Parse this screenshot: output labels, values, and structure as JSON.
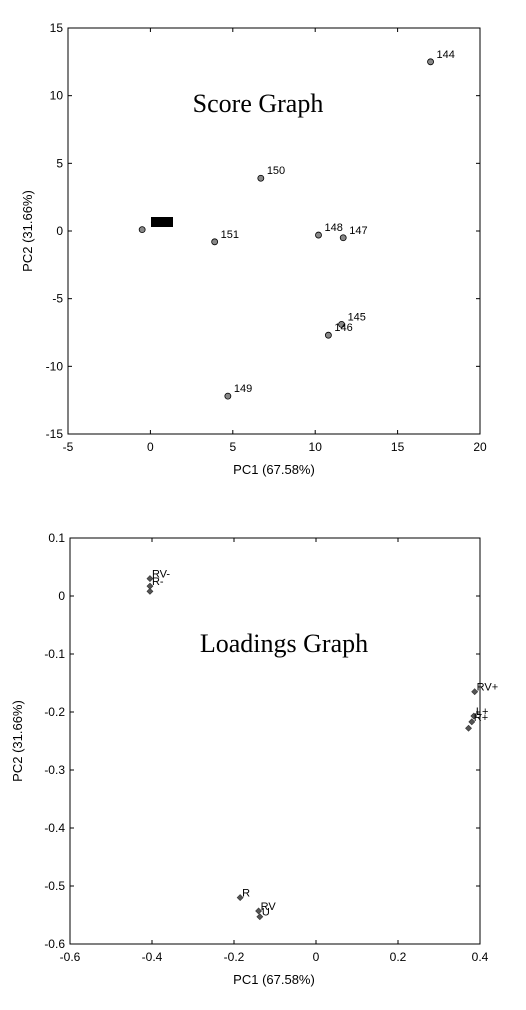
{
  "chart_data": [
    {
      "type": "scatter",
      "title": "Score Graph",
      "xlabel": "PC1 (67.58%)",
      "ylabel": "PC2 (31.66%)",
      "xlim": [
        -5,
        20
      ],
      "ylim": [
        -15,
        15
      ],
      "xticks": [
        "-5",
        "0",
        "5",
        "10",
        "15",
        "20"
      ],
      "yticks": [
        "-15",
        "-10",
        "-5",
        "0",
        "5",
        "10",
        "15"
      ],
      "grid": false,
      "points": [
        {
          "label": "144",
          "x": 17.0,
          "y": 12.5
        },
        {
          "label": "150",
          "x": 6.7,
          "y": 3.9
        },
        {
          "label": "151",
          "x": 3.9,
          "y": -0.8
        },
        {
          "label": "148",
          "x": 10.2,
          "y": -0.3
        },
        {
          "label": "147",
          "x": 11.7,
          "y": -0.5
        },
        {
          "label": "145",
          "x": 11.6,
          "y": -6.9
        },
        {
          "label": "146",
          "x": 10.8,
          "y": -7.7
        },
        {
          "label": "149",
          "x": 4.7,
          "y": -12.2
        },
        {
          "label": "",
          "x": -0.5,
          "y": 0.1
        }
      ]
    },
    {
      "type": "scatter",
      "title": "Loadings Graph",
      "xlabel": "PC1 (67.58%)",
      "ylabel": "PC2 (31.66%)",
      "xlim": [
        -0.6,
        0.4
      ],
      "ylim": [
        -0.6,
        0.1
      ],
      "xticks": [
        "-0.6",
        "-0.4",
        "-0.2",
        "0",
        "0.2",
        "0.4"
      ],
      "yticks": [
        "-0.6",
        "-0.5",
        "-0.4",
        "-0.3",
        "-0.2",
        "-0.1",
        "0",
        "0.1"
      ],
      "grid": false,
      "points": [
        {
          "label": "RV-",
          "x": -0.405,
          "y": 0.03
        },
        {
          "label": "R-",
          "x": -0.405,
          "y": 0.017
        },
        {
          "label": "",
          "x": -0.405,
          "y": 0.008
        },
        {
          "label": "RV+",
          "x": 0.387,
          "y": -0.165
        },
        {
          "label": "L+",
          "x": 0.385,
          "y": -0.207
        },
        {
          "label": "R+",
          "x": 0.38,
          "y": -0.217
        },
        {
          "label": "",
          "x": 0.372,
          "y": -0.228
        },
        {
          "label": "R",
          "x": -0.185,
          "y": -0.52
        },
        {
          "label": "RV",
          "x": -0.14,
          "y": -0.543
        },
        {
          "label": "U",
          "x": -0.137,
          "y": -0.553
        }
      ]
    }
  ]
}
